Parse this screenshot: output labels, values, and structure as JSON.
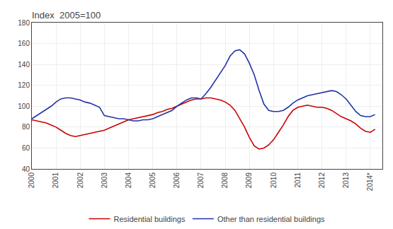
{
  "chart_data": {
    "type": "line",
    "title": "Index  2005=100",
    "x": [
      2000.0,
      2000.2,
      2000.4,
      2000.6,
      2000.8,
      2001.0,
      2001.2,
      2001.4,
      2001.6,
      2001.8,
      2002.0,
      2002.2,
      2002.4,
      2002.6,
      2002.8,
      2003.0,
      2003.2,
      2003.4,
      2003.6,
      2003.8,
      2004.0,
      2004.2,
      2004.4,
      2004.6,
      2004.8,
      2005.0,
      2005.2,
      2005.4,
      2005.6,
      2005.8,
      2006.0,
      2006.2,
      2006.4,
      2006.6,
      2006.8,
      2007.0,
      2007.2,
      2007.4,
      2007.6,
      2007.8,
      2008.0,
      2008.2,
      2008.4,
      2008.6,
      2008.8,
      2009.0,
      2009.2,
      2009.4,
      2009.6,
      2009.8,
      2010.0,
      2010.2,
      2010.4,
      2010.6,
      2010.8,
      2011.0,
      2011.2,
      2011.4,
      2011.6,
      2011.8,
      2012.0,
      2012.2,
      2012.4,
      2012.6,
      2012.8,
      2013.0,
      2013.2,
      2013.4,
      2013.6,
      2013.8,
      2014.0,
      2014.2
    ],
    "series": [
      {
        "name": "Residential buildings",
        "color": "#cc0000",
        "values": [
          87,
          86,
          85,
          84,
          82,
          80,
          77,
          74,
          72,
          71,
          72,
          73,
          74,
          75,
          76,
          77,
          79,
          81,
          83,
          85,
          87,
          88,
          89,
          90,
          91,
          92,
          94,
          95,
          97,
          98,
          100,
          102,
          104,
          106,
          107,
          107,
          108,
          108,
          107,
          106,
          104,
          101,
          96,
          88,
          80,
          70,
          62,
          59,
          60,
          63,
          68,
          75,
          82,
          90,
          96,
          99,
          100,
          101,
          100,
          99,
          99,
          98,
          96,
          93,
          90,
          88,
          86,
          83,
          79,
          76,
          75,
          78
        ]
      },
      {
        "name": "Other than residential buildings",
        "color": "#2233aa",
        "values": [
          88,
          91,
          94,
          97,
          100,
          104,
          107,
          108,
          108,
          107,
          106,
          104,
          103,
          101,
          99,
          91,
          90,
          89,
          88,
          88,
          87,
          86,
          86,
          87,
          87,
          88,
          90,
          92,
          94,
          96,
          100,
          103,
          106,
          108,
          108,
          107,
          112,
          118,
          125,
          132,
          139,
          148,
          153,
          154,
          150,
          141,
          130,
          115,
          102,
          96,
          95,
          95,
          96,
          99,
          103,
          106,
          108,
          110,
          111,
          112,
          113,
          114,
          115,
          114,
          111,
          107,
          101,
          95,
          91,
          90,
          90,
          92
        ]
      }
    ],
    "xlim": [
      2000,
      2014.5
    ],
    "xticks": [
      2000,
      2001,
      2002,
      2003,
      2004,
      2005,
      2006,
      2007,
      2008,
      2009,
      2010,
      2011,
      2012,
      2013,
      {
        "value": 2014,
        "label": "2014*"
      }
    ],
    "ylim": [
      40,
      180
    ],
    "yticks": [
      40,
      60,
      80,
      100,
      120,
      140,
      160,
      180
    ],
    "grid": true,
    "legend": "bottom"
  }
}
